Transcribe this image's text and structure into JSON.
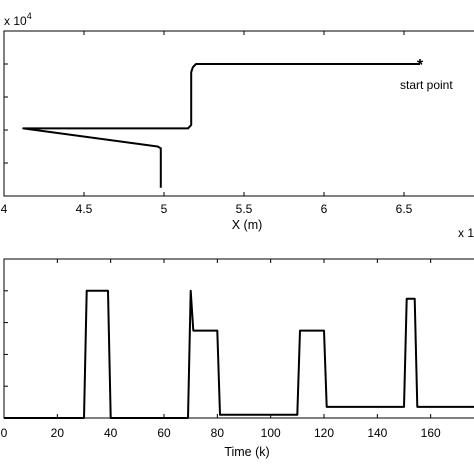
{
  "chart_data": [
    {
      "type": "line",
      "title": "",
      "xlabel": "X (m)",
      "ylabel": "",
      "y_multiplier_label": {
        "base": "x 10",
        "exp": "4"
      },
      "xlim": [
        4.0,
        7.0
      ],
      "xticks": [
        4,
        4.5,
        5,
        5.5,
        6,
        6.5
      ],
      "xtick_labels": [
        "4",
        "4.5",
        "5",
        "5.5",
        "6",
        "6.5"
      ],
      "ylim": [
        0.0,
        1.0
      ],
      "yticks": [
        0.2,
        0.4,
        0.6,
        0.8
      ],
      "grid": false,
      "marker": {
        "x": 6.6,
        "y": 0.8,
        "symbol": "*",
        "label": "start point"
      },
      "series": [
        {
          "x": [
            6.6,
            5.2,
            5.18,
            5.17,
            5.17,
            5.15,
            4.12,
            4.96,
            4.98,
            4.98
          ],
          "y": [
            0.8,
            0.8,
            0.78,
            0.75,
            0.43,
            0.41,
            0.41,
            0.3,
            0.29,
            0.05
          ]
        }
      ]
    },
    {
      "type": "line",
      "title": "",
      "xlabel": "Time (k)",
      "ylabel": "",
      "y_multiplier_label": {
        "base": "x 1",
        "exp": ""
      },
      "xlim": [
        0,
        180
      ],
      "xticks": [
        0,
        20,
        40,
        60,
        80,
        100,
        120,
        140,
        160
      ],
      "xtick_labels": [
        "0",
        "20",
        "40",
        "60",
        "80",
        "100",
        "120",
        "140",
        "160"
      ],
      "ylim": [
        0.0,
        1.0
      ],
      "yticks": [
        0.2,
        0.4,
        0.6,
        0.8
      ],
      "grid": false,
      "series": [
        {
          "x": [
            0,
            30,
            31,
            39,
            40,
            69,
            70,
            71,
            72,
            80,
            81,
            110,
            111,
            120,
            121,
            150,
            151,
            154,
            155,
            180
          ],
          "y": [
            0,
            0,
            0.8,
            0.8,
            0,
            0,
            0.8,
            0.55,
            0.55,
            0.55,
            0.02,
            0.02,
            0.55,
            0.55,
            0.07,
            0.07,
            0.75,
            0.75,
            0.07,
            0.07
          ]
        }
      ]
    }
  ]
}
